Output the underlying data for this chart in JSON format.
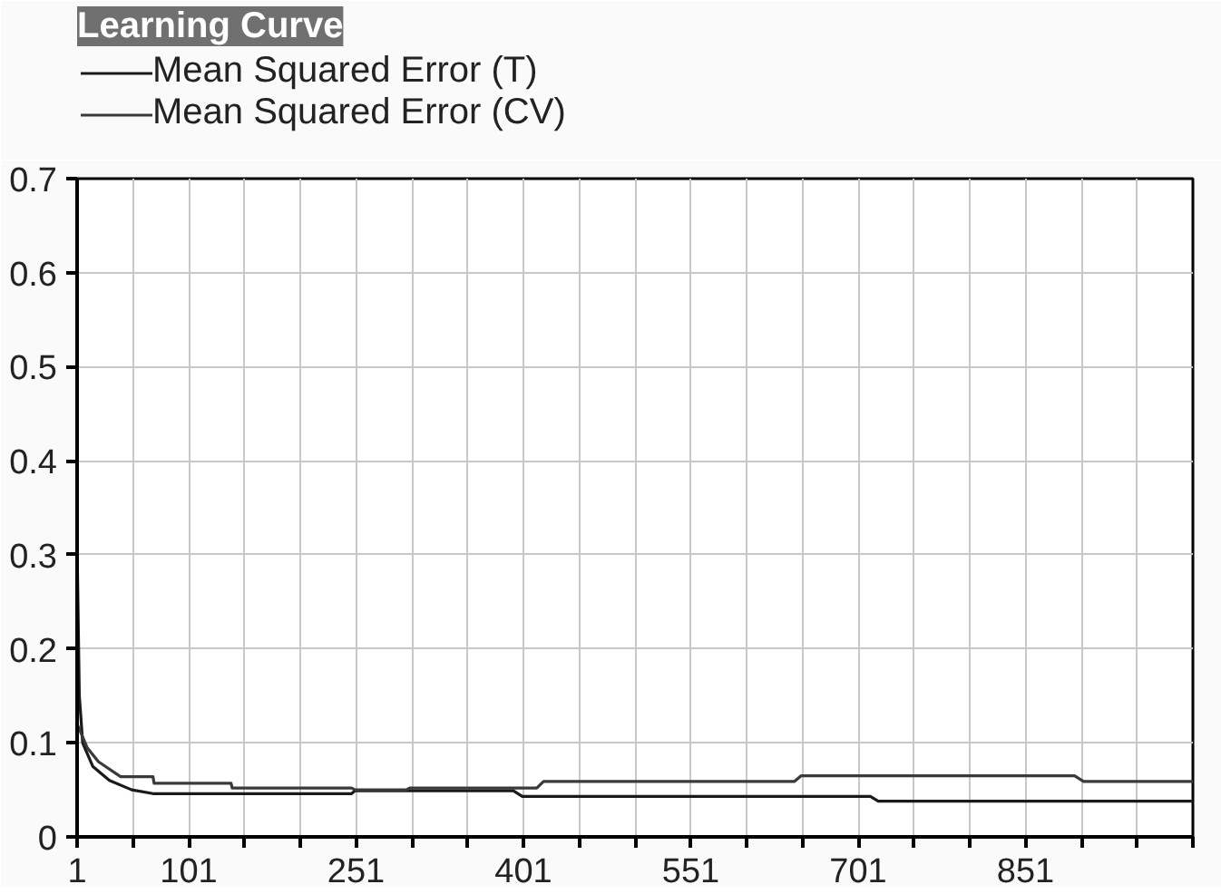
{
  "chart_data": {
    "type": "line",
    "title": "Learning Curve",
    "xlim": [
      1,
      1001
    ],
    "xticks": [
      1,
      {
        "value": 51,
        "label": null
      },
      101,
      {
        "value": 151,
        "label": null
      },
      {
        "value": 201,
        "label": null
      },
      251,
      {
        "value": 301,
        "label": null
      },
      {
        "value": 351,
        "label": null
      },
      401,
      {
        "value": 451,
        "label": null
      },
      {
        "value": 501,
        "label": null
      },
      551,
      {
        "value": 601,
        "label": null
      },
      {
        "value": 651,
        "label": null
      },
      701,
      {
        "value": 751,
        "label": null
      },
      {
        "value": 801,
        "label": null
      },
      851,
      {
        "value": 901,
        "label": null
      },
      {
        "value": 951,
        "label": null
      },
      {
        "value": 1001,
        "label": null
      }
    ],
    "ylim": [
      0,
      0.7
    ],
    "yticks": [
      0,
      0.1,
      0.2,
      0.3,
      0.4,
      0.5,
      0.6,
      0.7
    ],
    "grid": true,
    "legend": "top left",
    "marker": "none",
    "line_style": "solid",
    "series": [
      {
        "name": "Mean Squared Error (T)",
        "color": "#1a1a1a",
        "x": [
          1,
          3,
          6,
          15,
          30,
          50,
          69,
          247,
          250,
          392,
          400,
          712,
          719,
          1001
        ],
        "values": [
          0.31,
          0.15,
          0.1,
          0.075,
          0.06,
          0.05,
          0.046,
          0.046,
          0.049,
          0.049,
          0.043,
          0.043,
          0.038,
          0.038
        ]
      },
      {
        "name": "Mean Squared Error (CV)",
        "color": "#3a3a3a",
        "x": [
          1,
          10,
          20,
          40,
          69,
          70,
          139,
          140,
          247,
          250,
          296,
          299,
          413,
          419,
          644,
          650,
          895,
          903,
          1001
        ],
        "values": [
          0.12,
          0.095,
          0.08,
          0.064,
          0.064,
          0.057,
          0.057,
          0.052,
          0.052,
          0.05,
          0.05,
          0.052,
          0.052,
          0.059,
          0.059,
          0.065,
          0.065,
          0.059,
          0.059
        ]
      }
    ]
  }
}
